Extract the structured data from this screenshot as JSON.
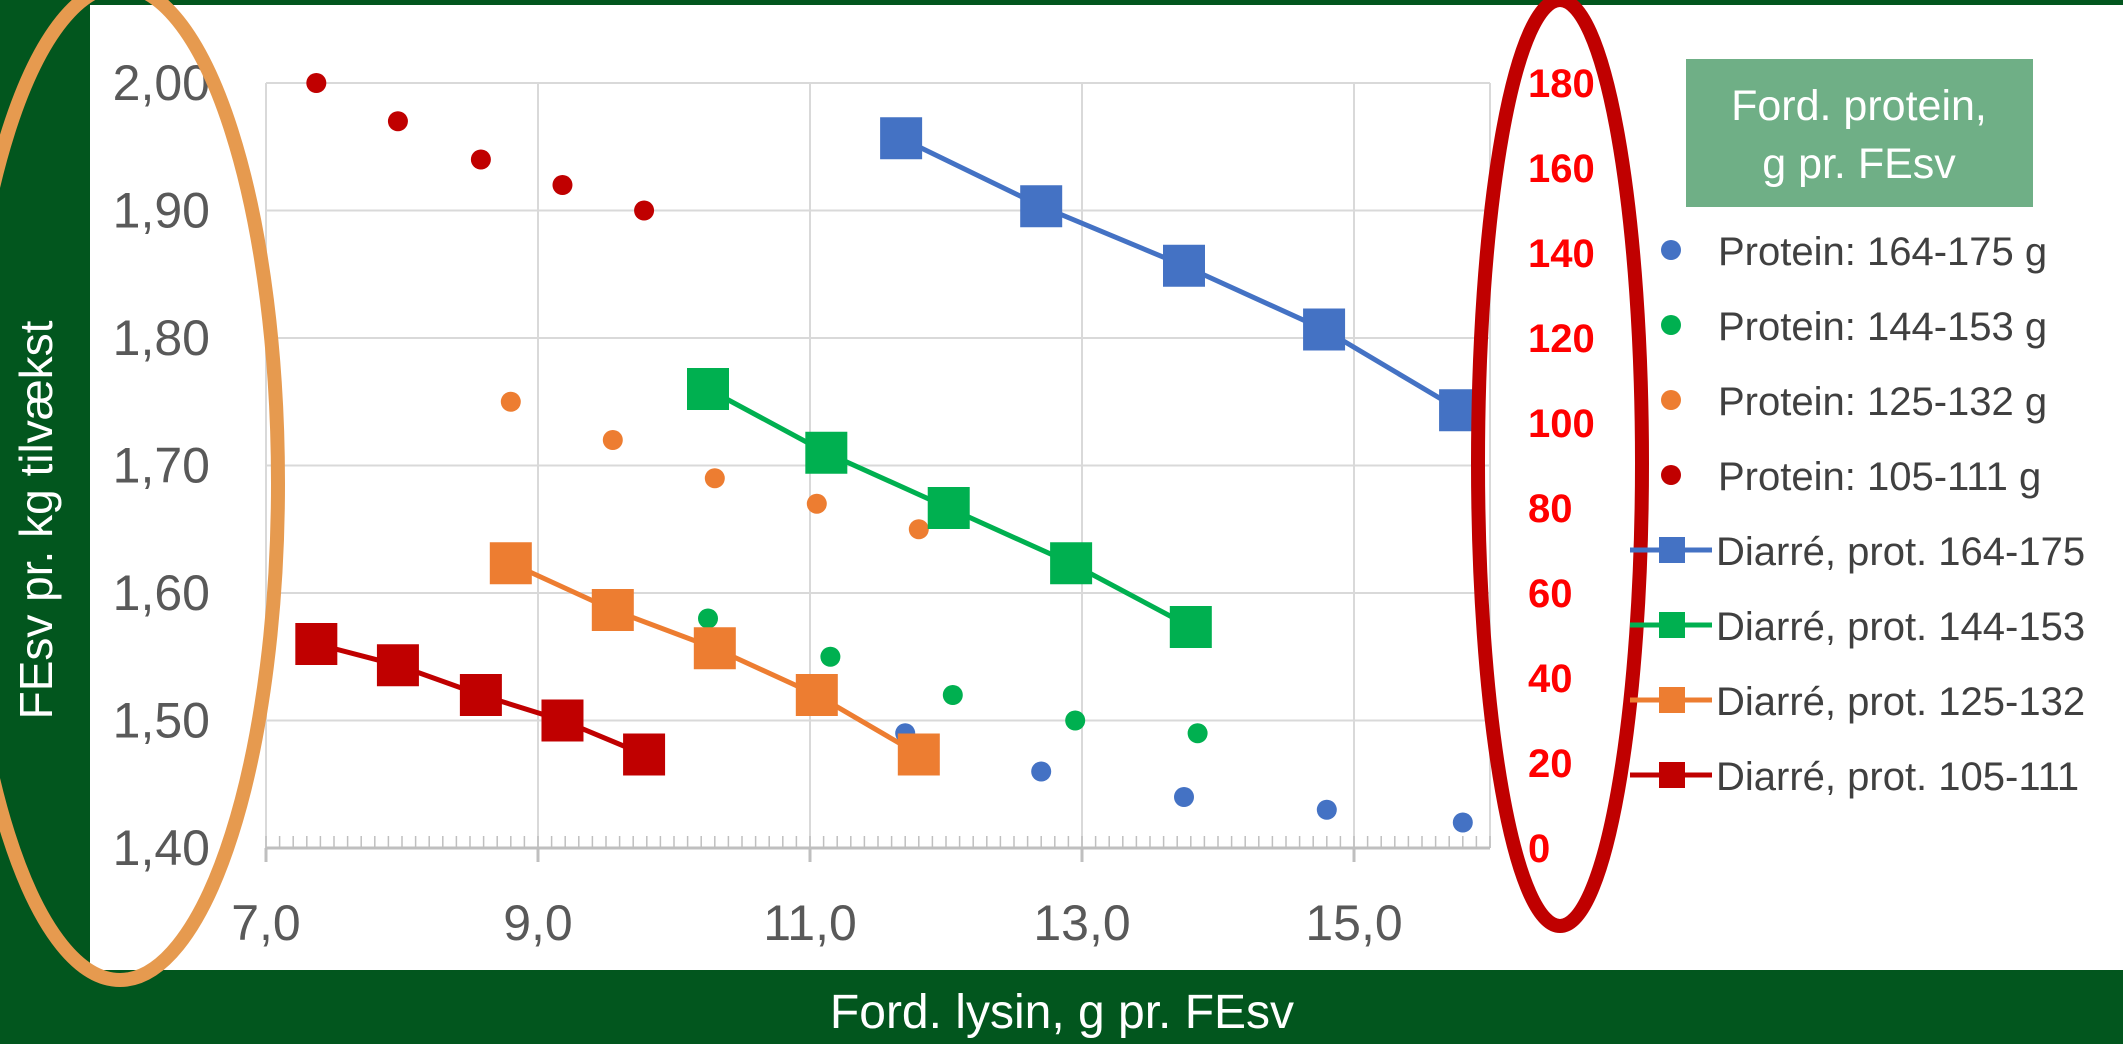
{
  "colors": {
    "frame": "#02561E",
    "legend_box": "#6FAF86",
    "blue": "#4472C4",
    "green": "#00B050",
    "orange": "#ED7D31",
    "red": "#C00000",
    "right_axis": "#FF0000",
    "right_ellipse": "#C00000",
    "left_ellipse": "#E69A4F",
    "grid": "#D9D9D9",
    "tick_text": "#595959"
  },
  "chart_data": {
    "type": "scatter",
    "title": "",
    "xlabel": "Ford. lysin, g pr. FEsv",
    "ylabel": "FEsv pr. kg tilvækst",
    "xlim": [
      6.0,
      16.0
    ],
    "ylim": [
      1.4,
      2.0
    ],
    "y2lim": [
      0,
      180
    ],
    "x_ticks": [
      "7,0",
      "9,0",
      "11,0",
      "13,0",
      "15,0"
    ],
    "y_ticks": [
      "1,40",
      "1,50",
      "1,60",
      "1,70",
      "1,80",
      "1,90",
      "2,00"
    ],
    "y2_ticks": [
      "0",
      "20",
      "40",
      "60",
      "80",
      "100",
      "120",
      "140",
      "160",
      "180"
    ],
    "grid": true,
    "legend_title": "Ford. protein, g pr. FEsv",
    "legend_position": "right",
    "series": [
      {
        "name": "Protein: 164-175 g",
        "kind": "dot",
        "color": "blue",
        "axis": "left",
        "x": [
          11.7,
          12.7,
          13.75,
          14.8,
          15.8
        ],
        "y": [
          1.49,
          1.46,
          1.44,
          1.43,
          1.42
        ]
      },
      {
        "name": "Protein: 144-153 g",
        "kind": "dot",
        "color": "green",
        "axis": "left",
        "x": [
          10.25,
          11.15,
          12.05,
          12.95,
          13.85
        ],
        "y": [
          1.58,
          1.55,
          1.52,
          1.5,
          1.49
        ]
      },
      {
        "name": "Protein: 125-132 g",
        "kind": "dot",
        "color": "orange",
        "axis": "left",
        "x": [
          8.8,
          9.55,
          10.3,
          11.05,
          11.8
        ],
        "y": [
          1.75,
          1.72,
          1.69,
          1.67,
          1.65
        ]
      },
      {
        "name": "Protein: 105-111 g",
        "kind": "dot",
        "color": "red",
        "axis": "left",
        "x": [
          7.37,
          7.97,
          8.58,
          9.18,
          9.78
        ],
        "y": [
          2.0,
          1.97,
          1.94,
          1.92,
          1.9
        ]
      },
      {
        "name": "Diarré, prot. 164-175",
        "kind": "line",
        "color": "blue",
        "axis": "right",
        "x": [
          11.67,
          12.7,
          13.75,
          14.78,
          15.78
        ],
        "y": [
          167,
          151,
          137,
          122,
          103
        ]
      },
      {
        "name": "Diarré, prot. 144-153",
        "kind": "line",
        "color": "green",
        "axis": "right",
        "x": [
          10.25,
          11.12,
          12.02,
          12.92,
          13.8
        ],
        "y": [
          108,
          93,
          80,
          67,
          52
        ]
      },
      {
        "name": "Diarré, prot. 125-132",
        "kind": "line",
        "color": "orange",
        "axis": "right",
        "x": [
          8.8,
          9.55,
          10.3,
          11.05,
          11.8
        ],
        "y": [
          67,
          56,
          47,
          36,
          22
        ]
      },
      {
        "name": "Diarré, prot. 105-111",
        "kind": "line",
        "color": "red",
        "axis": "right",
        "x": [
          7.37,
          7.97,
          8.58,
          9.18,
          9.78
        ],
        "y": [
          48,
          43,
          36,
          30,
          22
        ]
      }
    ]
  }
}
